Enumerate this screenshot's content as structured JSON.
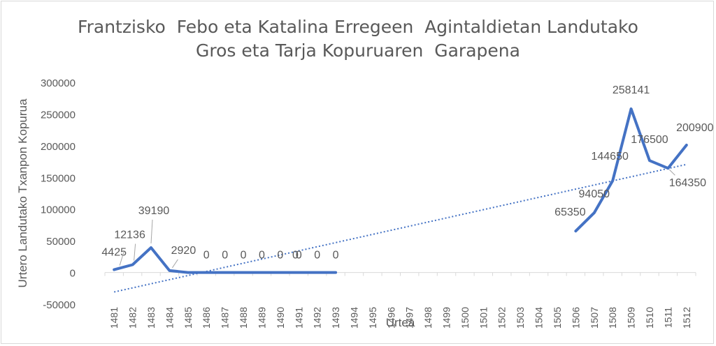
{
  "chart_data": {
    "type": "line",
    "title_line1": "Frantzisko  Febo eta Katalina Erregeen  Agintaldietan Landutako",
    "title_line2": "Gros eta Tarja Kopuruaren  Garapena",
    "xlabel": "Urtea",
    "ylabel": "Urtero  Landutako Txanpon Kopurua",
    "ylim": [
      -50000,
      300000
    ],
    "yticks": [
      -50000,
      0,
      50000,
      100000,
      150000,
      200000,
      250000,
      300000
    ],
    "categories": [
      "1481",
      "1482",
      "1483",
      "1484",
      "1485",
      "1486",
      "1487",
      "1488",
      "1489",
      "1490",
      "1491",
      "1492",
      "1493",
      "1494",
      "1495",
      "1496",
      "1497",
      "1498",
      "1499",
      "1500",
      "1501",
      "1502",
      "1503",
      "1504",
      "1505",
      "1506",
      "1507",
      "1508",
      "1509",
      "1510",
      "1511",
      "1512"
    ],
    "series": [
      {
        "values": [
          4425,
          12136,
          39190,
          2920,
          0,
          0,
          0,
          0,
          0,
          0,
          0,
          0,
          0,
          null,
          null,
          null,
          null,
          null,
          null,
          null,
          null,
          null,
          null,
          null,
          null,
          65350,
          94050,
          144650,
          258141,
          176500,
          164350,
          200900
        ],
        "color": "#4472c4"
      }
    ],
    "trendline": {
      "type": "linear",
      "style": "dotted",
      "color": "#4472c4"
    },
    "grid": false,
    "data_labels": [
      {
        "index": 0,
        "text": "4425"
      },
      {
        "index": 1,
        "text": "12136"
      },
      {
        "index": 2,
        "text": "39190"
      },
      {
        "index": 3,
        "text": "2920"
      },
      {
        "index": 5,
        "text": "0"
      },
      {
        "index": 6,
        "text": "0"
      },
      {
        "index": 7,
        "text": "0"
      },
      {
        "index": 8,
        "text": "0"
      },
      {
        "index": 9,
        "text": "0"
      },
      {
        "index": 10,
        "text": "0"
      },
      {
        "index": 11,
        "text": "0"
      },
      {
        "index": 12,
        "text": "0"
      },
      {
        "index": 13,
        "text": "0"
      },
      {
        "index": 25,
        "text": "65350"
      },
      {
        "index": 26,
        "text": "94050"
      },
      {
        "index": 27,
        "text": "144650"
      },
      {
        "index": 28,
        "text": "258141"
      },
      {
        "index": 29,
        "text": "176500"
      },
      {
        "index": 30,
        "text": "164350"
      },
      {
        "index": 31,
        "text": "200900"
      }
    ]
  }
}
